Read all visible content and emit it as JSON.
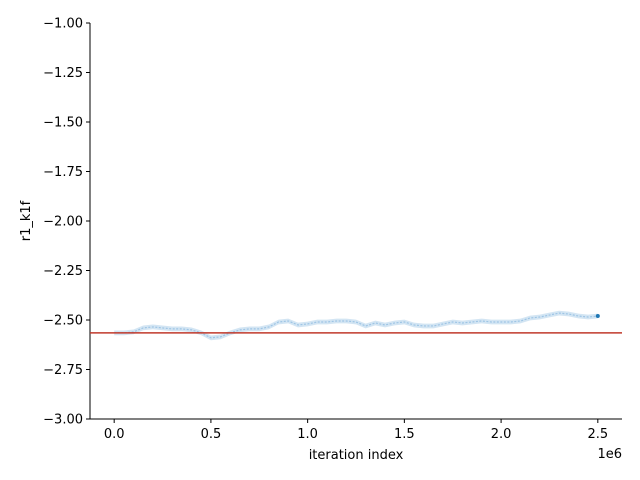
{
  "chart_data": {
    "type": "line",
    "title": "",
    "xlabel": "iteration index",
    "ylabel": "r1_k1f",
    "x_offset_text": "1e6",
    "xlim": [
      -0.125,
      2.625
    ],
    "ylim": [
      -3.0,
      -1.0
    ],
    "x_ticks": [
      0.0,
      0.5,
      1.0,
      1.5,
      2.0,
      2.5
    ],
    "x_tick_labels": [
      "0.0",
      "0.5",
      "1.0",
      "1.5",
      "2.0",
      "2.5"
    ],
    "y_ticks": [
      -1.0,
      -1.25,
      -1.5,
      -1.75,
      -2.0,
      -2.25,
      -2.5,
      -2.75,
      -3.0
    ],
    "y_tick_labels": [
      "−1.00",
      "−1.25",
      "−1.50",
      "−1.75",
      "−2.00",
      "−2.25",
      "−2.50",
      "−2.75",
      "−3.00"
    ],
    "grid": false,
    "reference_line": {
      "y": -2.565,
      "color": "#c0392b"
    },
    "band_color": "#9ec5e5",
    "line_color": "#1f77b4",
    "series": [
      {
        "x": [
          0.0,
          0.05,
          0.1,
          0.15,
          0.2,
          0.25,
          0.3,
          0.35,
          0.4,
          0.45,
          0.5,
          0.55,
          0.6,
          0.65,
          0.7,
          0.75,
          0.8,
          0.85,
          0.9,
          0.95,
          1.0,
          1.05,
          1.1,
          1.15,
          1.2,
          1.25,
          1.3,
          1.35,
          1.4,
          1.45,
          1.5,
          1.55,
          1.6,
          1.65,
          1.7,
          1.75,
          1.8,
          1.85,
          1.9,
          1.95,
          2.0,
          2.05,
          2.1,
          2.15,
          2.2,
          2.25,
          2.3,
          2.35,
          2.4,
          2.45,
          2.5
        ],
        "y": [
          -2.565,
          -2.565,
          -2.56,
          -2.54,
          -2.535,
          -2.54,
          -2.545,
          -2.545,
          -2.55,
          -2.565,
          -2.59,
          -2.585,
          -2.565,
          -2.55,
          -2.545,
          -2.545,
          -2.535,
          -2.51,
          -2.505,
          -2.525,
          -2.52,
          -2.51,
          -2.51,
          -2.505,
          -2.505,
          -2.51,
          -2.53,
          -2.515,
          -2.525,
          -2.515,
          -2.51,
          -2.525,
          -2.53,
          -2.53,
          -2.52,
          -2.51,
          -2.515,
          -2.51,
          -2.505,
          -2.51,
          -2.51,
          -2.51,
          -2.505,
          -2.49,
          -2.485,
          -2.475,
          -2.465,
          -2.47,
          -2.48,
          -2.485,
          -2.48
        ],
        "band_half_width": 0.012
      }
    ]
  }
}
